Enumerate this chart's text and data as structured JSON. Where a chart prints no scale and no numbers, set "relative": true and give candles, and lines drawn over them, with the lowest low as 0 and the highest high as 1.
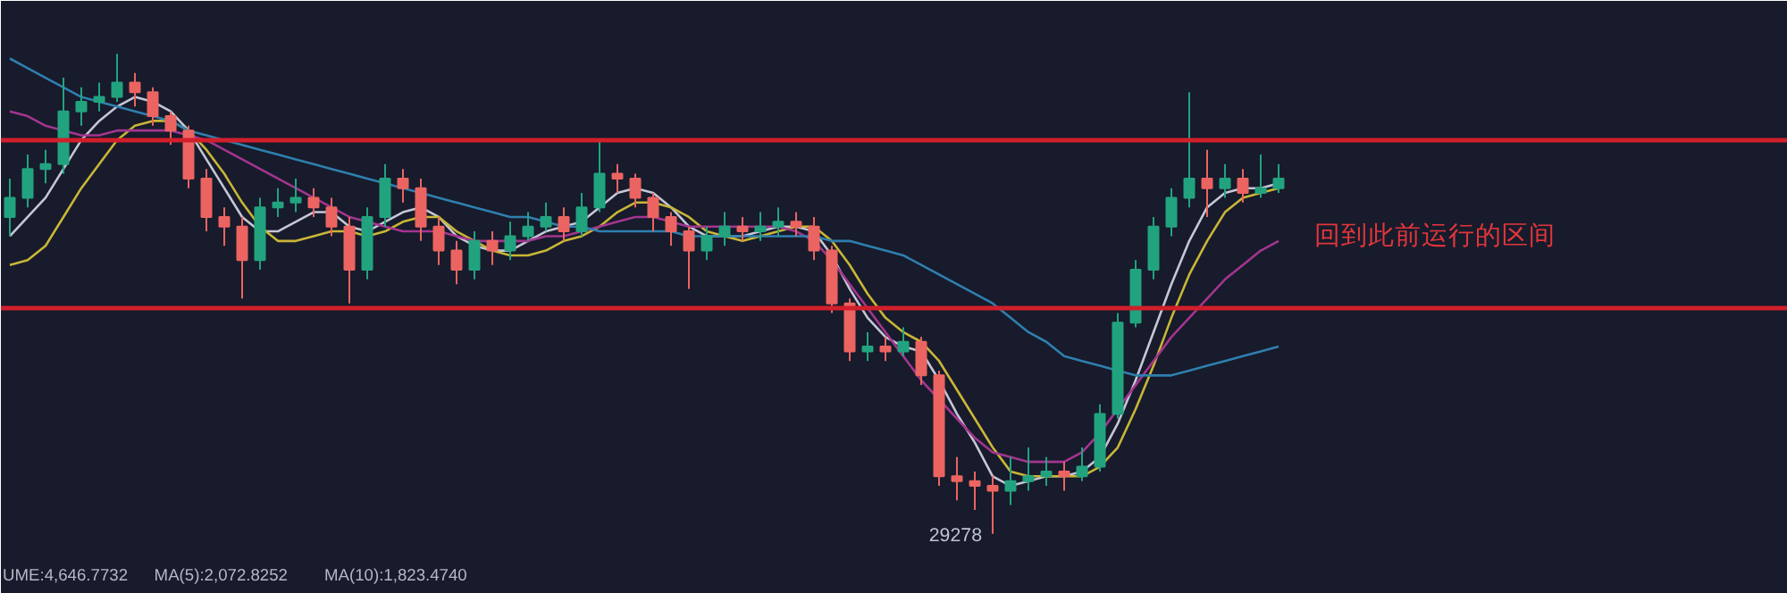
{
  "chart_data": {
    "type": "candlestick",
    "relative": true,
    "grid": false,
    "tick_labels": false,
    "categories": [
      null,
      null,
      null,
      null,
      null,
      null,
      null,
      null,
      null,
      null,
      null,
      null,
      null,
      null,
      null,
      null,
      null,
      null,
      null,
      null,
      null,
      null,
      null,
      null,
      null,
      null,
      null,
      null,
      null,
      null,
      null,
      null,
      null,
      null,
      null,
      null,
      null,
      null,
      null,
      null,
      null,
      null,
      null,
      null,
      null,
      null,
      null,
      null,
      null,
      null,
      null,
      null,
      null,
      null,
      null,
      null,
      null,
      null,
      null,
      null,
      null,
      null,
      null,
      null,
      null,
      null,
      null,
      null,
      null,
      null,
      null,
      null
    ],
    "ohlc": [
      [
        0.66,
        0.74,
        0.62,
        0.7
      ],
      [
        0.7,
        0.79,
        0.68,
        0.76
      ],
      [
        0.76,
        0.8,
        0.73,
        0.77
      ],
      [
        0.77,
        0.95,
        0.75,
        0.88
      ],
      [
        0.88,
        0.93,
        0.85,
        0.9
      ],
      [
        0.9,
        0.94,
        0.88,
        0.91
      ],
      [
        0.91,
        1.0,
        0.9,
        0.94
      ],
      [
        0.94,
        0.96,
        0.89,
        0.92
      ],
      [
        0.92,
        0.93,
        0.85,
        0.87
      ],
      [
        0.87,
        0.88,
        0.81,
        0.84
      ],
      [
        0.84,
        0.85,
        0.72,
        0.74
      ],
      [
        0.74,
        0.76,
        0.63,
        0.66
      ],
      [
        0.66,
        0.68,
        0.6,
        0.64
      ],
      [
        0.64,
        0.66,
        0.49,
        0.57
      ],
      [
        0.57,
        0.7,
        0.55,
        0.68
      ],
      [
        0.68,
        0.72,
        0.66,
        0.69
      ],
      [
        0.69,
        0.74,
        0.67,
        0.7
      ],
      [
        0.7,
        0.72,
        0.66,
        0.68
      ],
      [
        0.68,
        0.7,
        0.62,
        0.64
      ],
      [
        0.64,
        0.66,
        0.48,
        0.55
      ],
      [
        0.55,
        0.68,
        0.53,
        0.66
      ],
      [
        0.66,
        0.77,
        0.64,
        0.74
      ],
      [
        0.74,
        0.76,
        0.69,
        0.72
      ],
      [
        0.72,
        0.74,
        0.61,
        0.64
      ],
      [
        0.64,
        0.66,
        0.56,
        0.59
      ],
      [
        0.59,
        0.61,
        0.52,
        0.55
      ],
      [
        0.55,
        0.63,
        0.53,
        0.61
      ],
      [
        0.61,
        0.63,
        0.56,
        0.59
      ],
      [
        0.59,
        0.65,
        0.57,
        0.62
      ],
      [
        0.62,
        0.67,
        0.61,
        0.64
      ],
      [
        0.64,
        0.69,
        0.63,
        0.66
      ],
      [
        0.66,
        0.68,
        0.61,
        0.63
      ],
      [
        0.63,
        0.71,
        0.62,
        0.68
      ],
      [
        0.68,
        0.82,
        0.67,
        0.75
      ],
      [
        0.75,
        0.77,
        0.71,
        0.74
      ],
      [
        0.74,
        0.75,
        0.68,
        0.7
      ],
      [
        0.7,
        0.71,
        0.63,
        0.66
      ],
      [
        0.66,
        0.67,
        0.6,
        0.63
      ],
      [
        0.63,
        0.64,
        0.51,
        0.59
      ],
      [
        0.59,
        0.64,
        0.57,
        0.62
      ],
      [
        0.62,
        0.67,
        0.6,
        0.64
      ],
      [
        0.64,
        0.66,
        0.61,
        0.63
      ],
      [
        0.63,
        0.67,
        0.61,
        0.64
      ],
      [
        0.64,
        0.68,
        0.62,
        0.65
      ],
      [
        0.65,
        0.67,
        0.62,
        0.64
      ],
      [
        0.64,
        0.66,
        0.57,
        0.59
      ],
      [
        0.59,
        0.6,
        0.46,
        0.48
      ],
      [
        0.48,
        0.49,
        0.36,
        0.38
      ],
      [
        0.38,
        0.42,
        0.36,
        0.39
      ],
      [
        0.39,
        0.41,
        0.36,
        0.38
      ],
      [
        0.38,
        0.43,
        0.37,
        0.4
      ],
      [
        0.4,
        0.41,
        0.31,
        0.33
      ],
      [
        0.33,
        0.34,
        0.1,
        0.12
      ],
      [
        0.12,
        0.16,
        0.07,
        0.11
      ],
      [
        0.11,
        0.13,
        0.05,
        0.1
      ],
      [
        0.1,
        0.12,
        0.0,
        0.09
      ],
      [
        0.09,
        0.16,
        0.06,
        0.11
      ],
      [
        0.11,
        0.18,
        0.09,
        0.12
      ],
      [
        0.12,
        0.16,
        0.1,
        0.13
      ],
      [
        0.13,
        0.15,
        0.09,
        0.12
      ],
      [
        0.12,
        0.18,
        0.11,
        0.14
      ],
      [
        0.14,
        0.27,
        0.13,
        0.25
      ],
      [
        0.25,
        0.46,
        0.24,
        0.44
      ],
      [
        0.44,
        0.57,
        0.43,
        0.55
      ],
      [
        0.55,
        0.66,
        0.53,
        0.64
      ],
      [
        0.64,
        0.72,
        0.62,
        0.7
      ],
      [
        0.7,
        0.92,
        0.68,
        0.74
      ],
      [
        0.74,
        0.8,
        0.66,
        0.72
      ],
      [
        0.72,
        0.77,
        0.7,
        0.74
      ],
      [
        0.74,
        0.76,
        0.69,
        0.71
      ],
      [
        0.71,
        0.79,
        0.7,
        0.72
      ],
      [
        0.72,
        0.77,
        0.71,
        0.74
      ]
    ],
    "series": [
      {
        "type": "line",
        "color": "#c5c7d6",
        "values": [
          0.62,
          0.66,
          0.7,
          0.76,
          0.82,
          0.86,
          0.89,
          0.91,
          0.9,
          0.88,
          0.84,
          0.78,
          0.72,
          0.66,
          0.63,
          0.63,
          0.65,
          0.67,
          0.67,
          0.64,
          0.63,
          0.65,
          0.67,
          0.68,
          0.66,
          0.62,
          0.6,
          0.59,
          0.59,
          0.61,
          0.63,
          0.64,
          0.65,
          0.68,
          0.71,
          0.72,
          0.71,
          0.68,
          0.64,
          0.62,
          0.62,
          0.62,
          0.63,
          0.64,
          0.64,
          0.63,
          0.58,
          0.51,
          0.45,
          0.41,
          0.39,
          0.38,
          0.32,
          0.25,
          0.19,
          0.12,
          0.1,
          0.11,
          0.12,
          0.12,
          0.13,
          0.16,
          0.23,
          0.32,
          0.42,
          0.52,
          0.61,
          0.68,
          0.71,
          0.72,
          0.72,
          0.73
        ]
      },
      {
        "type": "line",
        "color": "#c9b637",
        "values": [
          0.56,
          0.57,
          0.6,
          0.66,
          0.72,
          0.77,
          0.82,
          0.85,
          0.86,
          0.86,
          0.84,
          0.8,
          0.75,
          0.69,
          0.64,
          0.61,
          0.61,
          0.62,
          0.63,
          0.63,
          0.62,
          0.63,
          0.65,
          0.66,
          0.66,
          0.63,
          0.61,
          0.59,
          0.58,
          0.58,
          0.59,
          0.61,
          0.62,
          0.64,
          0.67,
          0.69,
          0.69,
          0.68,
          0.66,
          0.63,
          0.62,
          0.61,
          0.62,
          0.63,
          0.64,
          0.64,
          0.61,
          0.56,
          0.5,
          0.45,
          0.42,
          0.4,
          0.36,
          0.3,
          0.24,
          0.18,
          0.13,
          0.12,
          0.12,
          0.12,
          0.12,
          0.14,
          0.18,
          0.26,
          0.35,
          0.45,
          0.54,
          0.61,
          0.67,
          0.7,
          0.71,
          0.72
        ]
      },
      {
        "type": "line",
        "color": "#a3358f",
        "values": [
          0.88,
          0.87,
          0.85,
          0.84,
          0.83,
          0.83,
          0.84,
          0.84,
          0.84,
          0.84,
          0.83,
          0.82,
          0.8,
          0.78,
          0.76,
          0.74,
          0.72,
          0.7,
          0.68,
          0.66,
          0.65,
          0.64,
          0.63,
          0.63,
          0.63,
          0.62,
          0.61,
          0.61,
          0.61,
          0.61,
          0.62,
          0.62,
          0.63,
          0.64,
          0.65,
          0.66,
          0.66,
          0.65,
          0.64,
          0.64,
          0.64,
          0.64,
          0.64,
          0.64,
          0.63,
          0.61,
          0.57,
          0.52,
          0.47,
          0.42,
          0.37,
          0.32,
          0.28,
          0.24,
          0.2,
          0.17,
          0.16,
          0.15,
          0.15,
          0.15,
          0.17,
          0.21,
          0.26,
          0.31,
          0.36,
          0.41,
          0.45,
          0.49,
          0.53,
          0.56,
          0.59,
          0.61
        ]
      },
      {
        "type": "line",
        "color": "#2f7fae",
        "values": [
          0.99,
          0.97,
          0.95,
          0.93,
          0.91,
          0.9,
          0.89,
          0.88,
          0.87,
          0.86,
          0.84,
          0.83,
          0.82,
          0.81,
          0.8,
          0.79,
          0.78,
          0.77,
          0.76,
          0.75,
          0.74,
          0.73,
          0.72,
          0.71,
          0.7,
          0.69,
          0.68,
          0.67,
          0.66,
          0.66,
          0.65,
          0.64,
          0.64,
          0.63,
          0.63,
          0.63,
          0.63,
          0.63,
          0.62,
          0.62,
          0.62,
          0.62,
          0.62,
          0.62,
          0.62,
          0.62,
          0.61,
          0.61,
          0.6,
          0.59,
          0.58,
          0.56,
          0.54,
          0.52,
          0.5,
          0.48,
          0.45,
          0.42,
          0.4,
          0.37,
          0.36,
          0.35,
          0.34,
          0.33,
          0.33,
          0.33,
          0.34,
          0.35,
          0.36,
          0.37,
          0.38,
          0.39
        ]
      }
    ],
    "ref_lines": [
      {
        "axis": "y",
        "value": 0.82,
        "color": "#d11f2b"
      },
      {
        "axis": "y",
        "value": 0.47,
        "color": "#d11f2b"
      }
    ],
    "annotations": [
      "回到此前运行的区间",
      "29278",
      "UME:4,646.7732",
      "MA(5):2,072.8252",
      "MA(10):1,823.4740"
    ]
  }
}
